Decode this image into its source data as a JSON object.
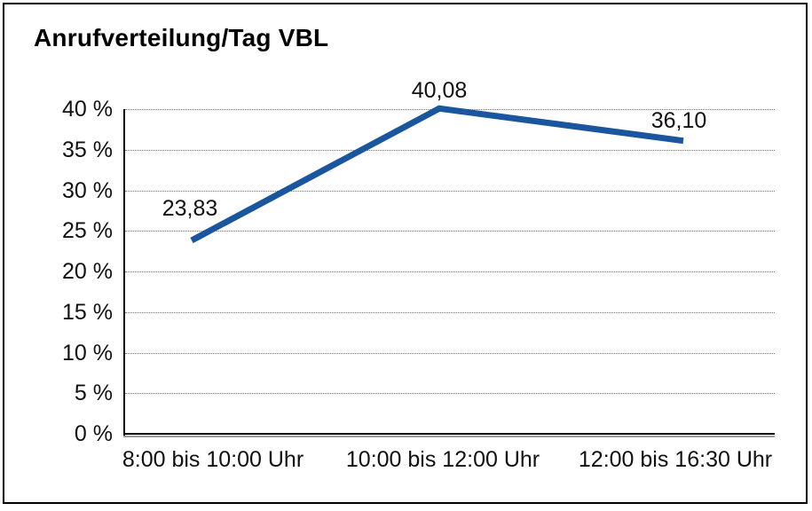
{
  "chart_data": {
    "type": "line",
    "title": "Anrufverteilung/Tag VBL",
    "categories": [
      "8:00 bis 10:00 Uhr",
      "10:00 bis 12:00 Uhr",
      "12:00 bis 16:30 Uhr"
    ],
    "values": [
      23.83,
      40.08,
      36.1
    ],
    "value_labels": [
      "23,83",
      "40,08",
      "36,10"
    ],
    "xlabel": "",
    "ylabel": "",
    "ylim": [
      0,
      40
    ],
    "ytick_step": 5,
    "ytick_labels": [
      "40 %",
      "35 %",
      "30 %",
      "25 %",
      "20 %",
      "15 %",
      "10 %",
      "5 %",
      "0 %"
    ],
    "grid": "horizontal-dotted",
    "legend_position": "none",
    "line_color": "#1A569E",
    "gridline_color": "#777777",
    "axis_color": "#000000",
    "frame_color": "#000000",
    "background_color": "#ffffff"
  }
}
